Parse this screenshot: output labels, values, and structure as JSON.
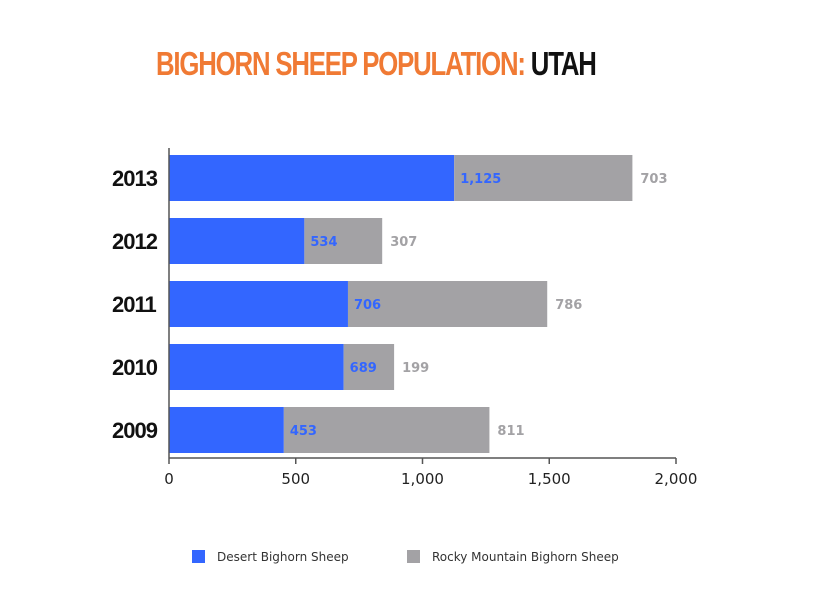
{
  "chart_data": {
    "type": "bar",
    "orientation": "horizontal",
    "stacked": true,
    "title": "BIGHORN SHEEP POPULATION:",
    "title_highlight": "UTAH",
    "categories": [
      "2013",
      "2012",
      "2011",
      "2010",
      "2009"
    ],
    "series": [
      {
        "name": "Desert Bighorn Sheep",
        "values": [
          1125,
          534,
          706,
          689,
          453
        ],
        "labels": [
          "1,125",
          "534",
          "706",
          "689",
          "453"
        ],
        "color": "#3366ff"
      },
      {
        "name": "Rocky Mountain Bighorn Sheep",
        "values": [
          703,
          307,
          786,
          199,
          811
        ],
        "labels": [
          "703",
          "307",
          "786",
          "199",
          "811"
        ],
        "color": "#a3a2a5"
      }
    ],
    "xlim": [
      0,
      2000
    ],
    "xticks": [
      0,
      500,
      1000,
      1500,
      2000
    ],
    "xtick_labels": [
      "0",
      "500",
      "1,000",
      "1,500",
      "2,000"
    ],
    "xlabel": "",
    "ylabel": "",
    "grid": false,
    "legend_position": "bottom",
    "title_colors": {
      "main": "#f07a34",
      "highlight": "#111111"
    }
  }
}
